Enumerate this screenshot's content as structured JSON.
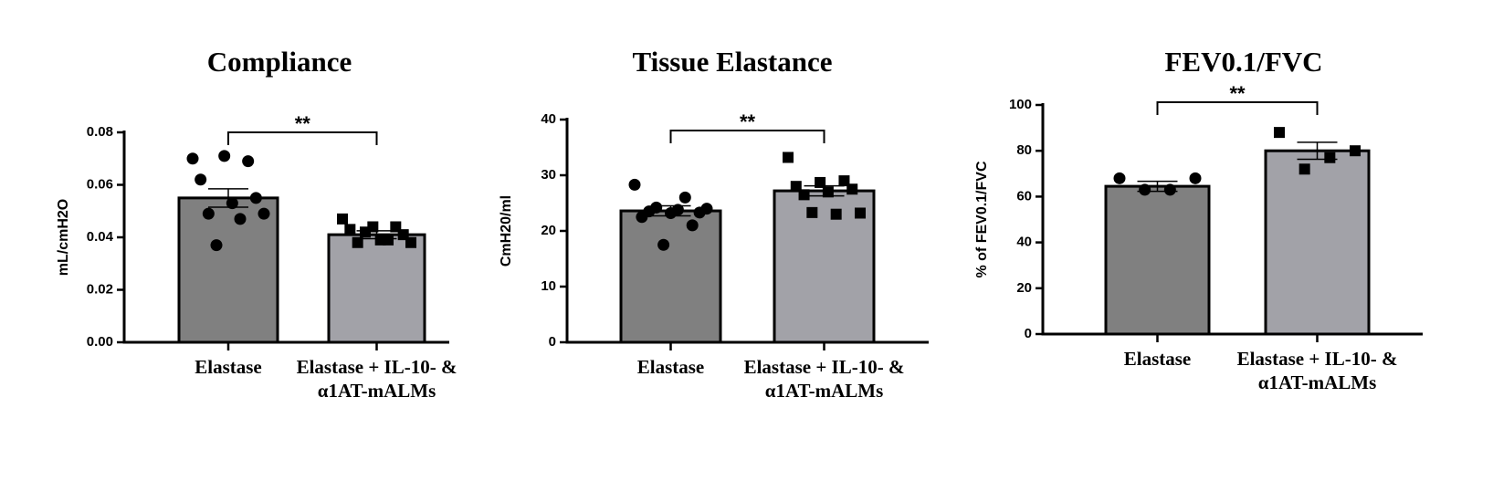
{
  "chart_data": [
    {
      "type": "bar",
      "title": "Compliance",
      "y_label": "mL/cmH2O",
      "categories": [
        "Elastase",
        "Elastase + IL-10- & α1AT-mALMs"
      ],
      "values": [
        0.055,
        0.041
      ],
      "errors": [
        0.0035,
        0.0015
      ],
      "colors": [
        "#808080",
        "#a2a2a8"
      ],
      "point_markers": [
        "circle",
        "square"
      ],
      "points": [
        [
          0.07,
          0.069,
          0.071,
          0.062,
          0.055,
          0.053,
          0.049,
          0.049,
          0.047,
          0.037
        ],
        [
          0.047,
          0.044,
          0.044,
          0.043,
          0.041,
          0.039,
          0.038,
          0.038,
          0.039,
          0.042
        ]
      ],
      "ylim": [
        0,
        0.08
      ],
      "yticks": [
        {
          "value": 0,
          "label": "0.00"
        },
        {
          "value": 0.02,
          "label": "0.02"
        },
        {
          "value": 0.04,
          "label": "0.04"
        },
        {
          "value": 0.06,
          "label": "0.06"
        },
        {
          "value": 0.08,
          "label": "0.08"
        }
      ],
      "annotation": "**"
    },
    {
      "type": "bar",
      "title": "Tissue Elastance",
      "y_label": "CmH20/ml",
      "categories": [
        "Elastase",
        "Elastase + IL-10- & α1AT-mALMs"
      ],
      "values": [
        23.6,
        27.2
      ],
      "errors": [
        0.9,
        0.9
      ],
      "colors": [
        "#808080",
        "#a2a2a8"
      ],
      "point_markers": [
        "circle",
        "square"
      ],
      "points": [
        [
          28.3,
          26.0,
          24.2,
          24.0,
          23.8,
          23.5,
          23.3,
          23.2,
          22.5,
          21.0,
          17.5
        ],
        [
          33.2,
          29.0,
          28.7,
          28.0,
          27.5,
          27.0,
          26.5,
          23.2,
          23.0,
          23.3
        ]
      ],
      "ylim": [
        0,
        40
      ],
      "yticks": [
        0,
        10,
        20,
        30,
        40
      ],
      "annotation": "**"
    },
    {
      "type": "bar",
      "title": "FEV0.1/FVC",
      "y_label": "% of FEV0.1/FVC",
      "categories": [
        "Elastase",
        "Elastase + IL-10- & α1AT-mALMs"
      ],
      "values": [
        64.5,
        80
      ],
      "errors": [
        2.2,
        3.7
      ],
      "colors": [
        "#808080",
        "#a2a2a8"
      ],
      "point_markers": [
        "circle",
        "square"
      ],
      "points": [
        [
          68,
          68,
          63,
          63
        ],
        [
          88,
          80,
          77,
          72
        ]
      ],
      "ylim": [
        0,
        100
      ],
      "yticks": [
        0,
        20,
        40,
        60,
        80,
        100
      ],
      "annotation": "**"
    }
  ]
}
